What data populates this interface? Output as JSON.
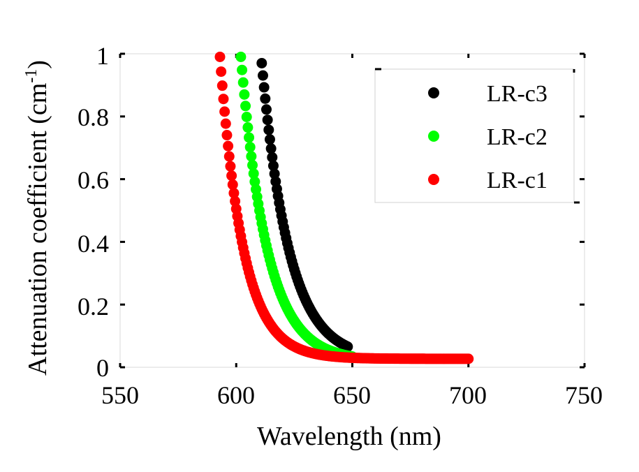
{
  "chart_data": {
    "type": "scatter",
    "title": "",
    "xlabel": "Wavelength (nm)",
    "ylabel_main": "Attenuation coefficient (cm",
    "ylabel_sup": "-1",
    "ylabel_close": ")",
    "xlim": [
      550,
      750
    ],
    "ylim": [
      0,
      1
    ],
    "x_ticks": [
      550,
      600,
      650,
      700,
      750
    ],
    "y_ticks": [
      0,
      0.2,
      0.4,
      0.6,
      0.8,
      1
    ],
    "x_tick_labels": [
      "550",
      "600",
      "650",
      "700",
      "750"
    ],
    "y_tick_labels": [
      "0",
      "0.2",
      "0.4",
      "0.6",
      "0.8",
      "1"
    ],
    "legend_position": "top-right",
    "series": [
      {
        "name": "LR-c3",
        "color": "#000000",
        "model": {
          "x0": 611,
          "x_end": 648,
          "y0": 0.97,
          "k": 0.085,
          "floor": 0.025
        }
      },
      {
        "name": "LR-c2",
        "color": "#00ff00",
        "model": {
          "x0": 602,
          "x_end": 650,
          "y0": 0.99,
          "k": 0.088,
          "floor": 0.02
        }
      },
      {
        "name": "LR-c1",
        "color": "#ff0000",
        "model": {
          "x0": 593,
          "x_end": 700,
          "y0": 0.99,
          "k": 0.1,
          "floor": 0.027
        }
      }
    ]
  }
}
